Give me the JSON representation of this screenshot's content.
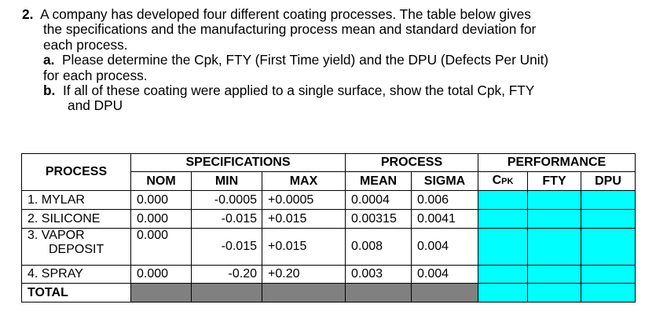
{
  "question": {
    "number": "2.",
    "intro_lines": [
      "A company has developed four different coating processes. The table below gives",
      "the specifications and the manufacturing process mean and standard deviation for",
      "each process."
    ],
    "part_a": {
      "label": "a.",
      "lines": [
        "Please determine the Cpk, FTY (First Time yield) and the DPU (Defects Per Unit)",
        "for each process."
      ]
    },
    "part_b": {
      "label": "b.",
      "lines": [
        "If all of these coating were applied to a single surface, show the total Cpk, FTY",
        "and DPU"
      ]
    }
  },
  "table": {
    "headers": {
      "process": "PROCESS",
      "specifications": "SPECIFICATIONS",
      "process_group": "PROCESS",
      "performance": "PERFORMANCE",
      "nom": "NOM",
      "min": "MIN",
      "max": "MAX",
      "mean": "MEAN",
      "sigma": "SIGMA",
      "cpk_main": "C",
      "cpk_sub": "PK",
      "fty": "FTY",
      "dpu": "DPU"
    },
    "rows": [
      {
        "name_lines": [
          "1.  MYLAR"
        ],
        "nom": "0.000",
        "min": "-0.0005",
        "max": "+0.0005",
        "mean": "0.0004",
        "sigma": "0.006"
      },
      {
        "name_lines": [
          "2.  SILICONE"
        ],
        "nom": "0.000",
        "min": "-0.015",
        "max": "+0.015",
        "mean": "0.00315",
        "sigma": "0.0041"
      },
      {
        "name_lines": [
          "3.  VAPOR",
          "DEPOSIT"
        ],
        "nom": "0.000",
        "min": "-0.015",
        "max": "+0.015",
        "mean": "0.008",
        "sigma": "0.004"
      },
      {
        "name_lines": [
          "4.  SPRAY"
        ],
        "nom": "0.000",
        "min": "-0.20",
        "max": "+0.20",
        "mean": "0.003",
        "sigma": "0.004"
      }
    ],
    "total_label": "TOTAL",
    "colors": {
      "answer_fill": "#00ffff",
      "blocked_fill": "#808080"
    }
  }
}
